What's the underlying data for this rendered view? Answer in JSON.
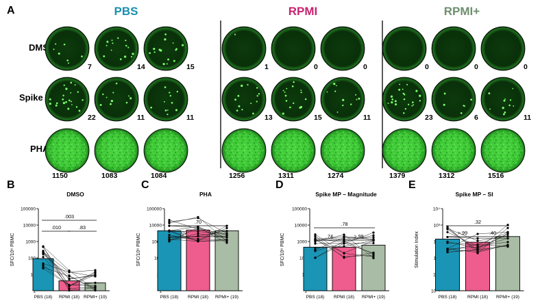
{
  "panelA": {
    "letter": "A",
    "columns": [
      {
        "name": "PBS",
        "color": "#1a8fb0"
      },
      {
        "name": "RPMI",
        "color": "#c8236f"
      },
      {
        "name": "RPMI+",
        "color": "#6e8f6e"
      }
    ],
    "rows": [
      {
        "name": "DMSO",
        "counts": [
          [
            "7",
            "14",
            "15"
          ],
          [
            "1",
            "0",
            "0"
          ],
          [
            "0",
            "0",
            "0"
          ]
        ]
      },
      {
        "name": "Spike MP",
        "counts": [
          [
            "22",
            "11",
            "11"
          ],
          [
            "13",
            "15",
            "11"
          ],
          [
            "23",
            "6",
            "11"
          ]
        ]
      },
      {
        "name": "PHA",
        "counts": [
          [
            "1150",
            "1083",
            "1084"
          ],
          [
            "1256",
            "1311",
            "1274"
          ],
          [
            "1379",
            "1312",
            "1516"
          ]
        ]
      }
    ]
  },
  "chart_data": [
    {
      "letter": "B",
      "type": "bar",
      "title": "DMSO",
      "ylabel": "SFC/10⁶ PBMC",
      "scale": "log",
      "ylim": [
        1,
        100000
      ],
      "yticks": [
        "1",
        "10",
        "100",
        "1000",
        "10000",
        "100000"
      ],
      "categories": [
        "PBS (18)",
        "RPMI (18)",
        "RPMI+ (19)"
      ],
      "colors": [
        "#1a95b5",
        "#ef5d8e",
        "#a9bca5"
      ],
      "values": [
        90,
        4,
        3
      ],
      "comparisons": [
        {
          "label": ".003",
          "from": 0,
          "to": 2
        },
        {
          "label": ".010",
          "from": 0,
          "to": 1
        },
        {
          "label": ".83",
          "from": 1,
          "to": 2
        }
      ]
    },
    {
      "letter": "C",
      "type": "bar",
      "title": "PHA",
      "ylabel": "SFC/10⁶ PBMC",
      "scale": "log",
      "ylim": [
        1,
        100000
      ],
      "yticks": [
        "1",
        "10",
        "100",
        "1000",
        "10000",
        "100000"
      ],
      "categories": [
        "PBS (18)",
        "RPMI (18)",
        "RPMI+ (19)"
      ],
      "colors": [
        "#1a95b5",
        "#ef5d8e",
        "#a9bca5"
      ],
      "values": [
        4500,
        5000,
        4500
      ],
      "comparisons": [
        {
          "label": ".70",
          "from": 0,
          "to": 2
        },
        {
          "label": ".07",
          "from": 0,
          "to": 1
        },
        {
          "label": ".07",
          "from": 1,
          "to": 2
        }
      ]
    },
    {
      "letter": "D",
      "type": "bar",
      "title": "Spike MP – Magnitude",
      "ylabel": "SFC/10⁶ PBMC",
      "scale": "log",
      "ylim": [
        1,
        100000
      ],
      "yticks": [
        "1",
        "10",
        "100",
        "1000",
        "10000",
        "100000"
      ],
      "categories": [
        "PBS (18)",
        "RPMI (18)",
        "RPMI+ (19)"
      ],
      "colors": [
        "#1a95b5",
        "#ef5d8e",
        "#a9bca5"
      ],
      "values": [
        450,
        450,
        600
      ],
      "comparisons": [
        {
          "label": ".78",
          "from": 0,
          "to": 2
        },
        {
          "label": ".74",
          "from": 0,
          "to": 1
        },
        {
          "label": ">.99",
          "from": 1,
          "to": 2
        }
      ]
    },
    {
      "letter": "E",
      "type": "bar",
      "title": "Spike MP – SI",
      "ylabel": "Stimulation Index",
      "scale": "log",
      "ylim": [
        0.1,
        10000
      ],
      "yticks": [
        "10⁻¹",
        "10⁰",
        "10¹",
        "10²",
        "10³",
        "10⁴"
      ],
      "categories": [
        "PBS (18)",
        "RPMI (18)",
        "RPMI+ (19)"
      ],
      "colors": [
        "#1a95b5",
        "#ef5d8e",
        "#a9bca5"
      ],
      "values": [
        140,
        90,
        200
      ],
      "comparisons": [
        {
          "label": ".32",
          "from": 0,
          "to": 2
        },
        {
          "label": ">.99",
          "from": 0,
          "to": 1
        },
        {
          "label": ".40",
          "from": 1,
          "to": 2
        }
      ]
    }
  ]
}
